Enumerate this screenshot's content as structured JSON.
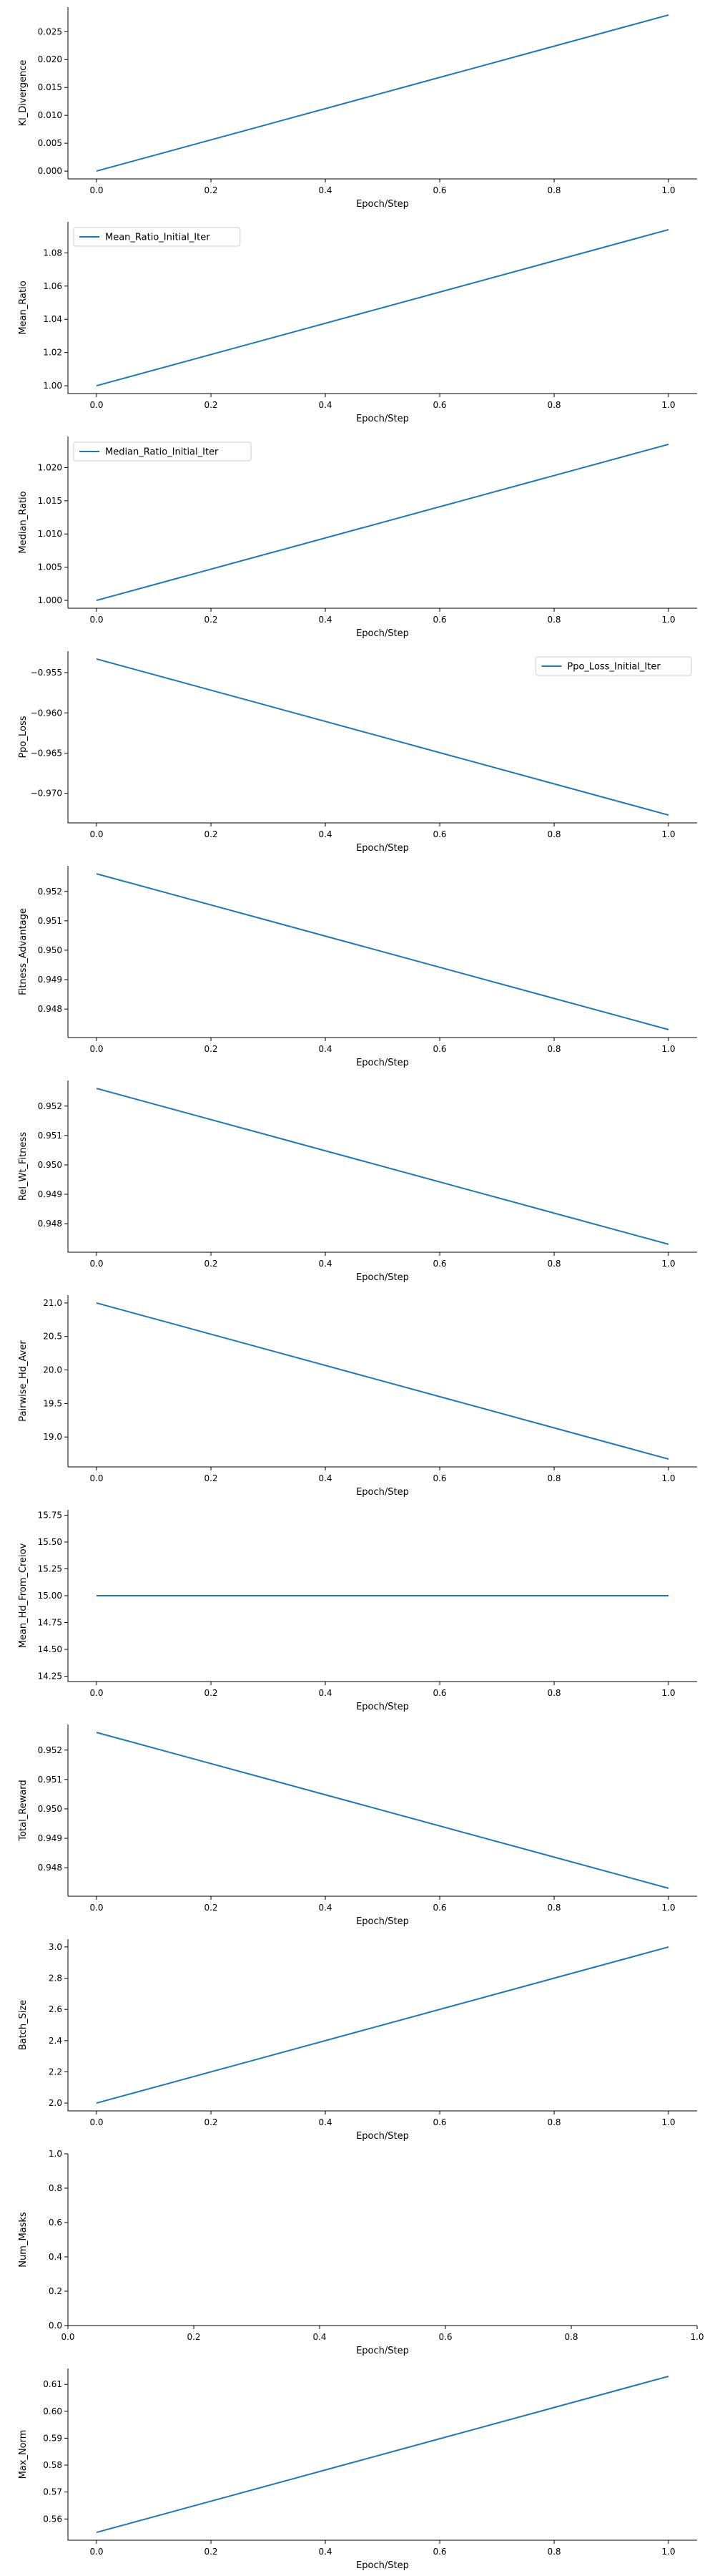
{
  "colors": {
    "line": "#1f77b4",
    "axis": "#000000",
    "legend_border": "#cccccc"
  },
  "chart_data": [
    {
      "type": "line",
      "xlabel": "Epoch/Step",
      "ylabel": "Kl_Divergence",
      "x": [
        0.0,
        1.0
      ],
      "y": [
        0.0,
        0.028
      ],
      "xlim": [
        -0.05,
        1.05
      ],
      "ylim": [
        -0.0014,
        0.0294
      ],
      "xticks": [
        0.0,
        0.2,
        0.4,
        0.6,
        0.8,
        1.0
      ],
      "xtick_labels": [
        "0.0",
        "0.2",
        "0.4",
        "0.6",
        "0.8",
        "1.0"
      ],
      "yticks": [
        0.0,
        0.005,
        0.01,
        0.015,
        0.02,
        0.025
      ],
      "ytick_labels": [
        "0.000",
        "0.005",
        "0.010",
        "0.015",
        "0.020",
        "0.025"
      ],
      "legend": null
    },
    {
      "type": "line",
      "xlabel": "Epoch/Step",
      "ylabel": "Mean_Ratio",
      "x": [
        0.0,
        1.0
      ],
      "y": [
        1.0,
        1.094
      ],
      "xlim": [
        -0.05,
        1.05
      ],
      "ylim": [
        0.9953,
        1.0987
      ],
      "xticks": [
        0.0,
        0.2,
        0.4,
        0.6,
        0.8,
        1.0
      ],
      "xtick_labels": [
        "0.0",
        "0.2",
        "0.4",
        "0.6",
        "0.8",
        "1.0"
      ],
      "yticks": [
        1.0,
        1.02,
        1.04,
        1.06,
        1.08
      ],
      "ytick_labels": [
        "1.00",
        "1.02",
        "1.04",
        "1.06",
        "1.08"
      ],
      "legend": {
        "label": "Mean_Ratio_Initial_Iter",
        "loc": "upper left"
      }
    },
    {
      "type": "line",
      "xlabel": "Epoch/Step",
      "ylabel": "Median_Ratio",
      "x": [
        0.0,
        1.0
      ],
      "y": [
        1.0,
        1.0235
      ],
      "xlim": [
        -0.05,
        1.05
      ],
      "ylim": [
        0.99882,
        1.02468
      ],
      "xticks": [
        0.0,
        0.2,
        0.4,
        0.6,
        0.8,
        1.0
      ],
      "xtick_labels": [
        "0.0",
        "0.2",
        "0.4",
        "0.6",
        "0.8",
        "1.0"
      ],
      "yticks": [
        1.0,
        1.005,
        1.01,
        1.015,
        1.02
      ],
      "ytick_labels": [
        "1.000",
        "1.005",
        "1.010",
        "1.015",
        "1.020"
      ],
      "legend": {
        "label": "Median_Ratio_Initial_Iter",
        "loc": "upper left"
      }
    },
    {
      "type": "line",
      "xlabel": "Epoch/Step",
      "ylabel": "Ppo_Loss",
      "x": [
        0.0,
        1.0
      ],
      "y": [
        -0.9533,
        -0.9727
      ],
      "xlim": [
        -0.05,
        1.05
      ],
      "ylim": [
        -0.97367,
        -0.95233
      ],
      "xticks": [
        0.0,
        0.2,
        0.4,
        0.6,
        0.8,
        1.0
      ],
      "xtick_labels": [
        "0.0",
        "0.2",
        "0.4",
        "0.6",
        "0.8",
        "1.0"
      ],
      "yticks": [
        -0.955,
        -0.96,
        -0.965,
        -0.97
      ],
      "ytick_labels": [
        "−0.955",
        "−0.960",
        "−0.965",
        "−0.970"
      ],
      "legend": {
        "label": "Ppo_Loss_Initial_Iter",
        "loc": "upper right"
      }
    },
    {
      "type": "line",
      "xlabel": "Epoch/Step",
      "ylabel": "Fitness_Advantage",
      "x": [
        0.0,
        1.0
      ],
      "y": [
        0.9526,
        0.9473
      ],
      "xlim": [
        -0.05,
        1.05
      ],
      "ylim": [
        0.94703,
        0.95287
      ],
      "xticks": [
        0.0,
        0.2,
        0.4,
        0.6,
        0.8,
        1.0
      ],
      "xtick_labels": [
        "0.0",
        "0.2",
        "0.4",
        "0.6",
        "0.8",
        "1.0"
      ],
      "yticks": [
        0.948,
        0.949,
        0.95,
        0.951,
        0.952
      ],
      "ytick_labels": [
        "0.948",
        "0.949",
        "0.950",
        "0.951",
        "0.952"
      ],
      "legend": null
    },
    {
      "type": "line",
      "xlabel": "Epoch/Step",
      "ylabel": "Rel_Wt_Fitness",
      "x": [
        0.0,
        1.0
      ],
      "y": [
        0.9526,
        0.9473
      ],
      "xlim": [
        -0.05,
        1.05
      ],
      "ylim": [
        0.94703,
        0.95287
      ],
      "xticks": [
        0.0,
        0.2,
        0.4,
        0.6,
        0.8,
        1.0
      ],
      "xtick_labels": [
        "0.0",
        "0.2",
        "0.4",
        "0.6",
        "0.8",
        "1.0"
      ],
      "yticks": [
        0.948,
        0.949,
        0.95,
        0.951,
        0.952
      ],
      "ytick_labels": [
        "0.948",
        "0.949",
        "0.950",
        "0.951",
        "0.952"
      ],
      "legend": null
    },
    {
      "type": "line",
      "xlabel": "Epoch/Step",
      "ylabel": "Pairwise_Hd_Aver",
      "x": [
        0.0,
        1.0
      ],
      "y": [
        21.0,
        18.67
      ],
      "xlim": [
        -0.05,
        1.05
      ],
      "ylim": [
        18.5535,
        21.1165
      ],
      "xticks": [
        0.0,
        0.2,
        0.4,
        0.6,
        0.8,
        1.0
      ],
      "xtick_labels": [
        "0.0",
        "0.2",
        "0.4",
        "0.6",
        "0.8",
        "1.0"
      ],
      "yticks": [
        19.0,
        19.5,
        20.0,
        20.5,
        21.0
      ],
      "ytick_labels": [
        "19.0",
        "19.5",
        "20.0",
        "20.5",
        "21.0"
      ],
      "legend": null
    },
    {
      "type": "line",
      "xlabel": "Epoch/Step",
      "ylabel": "Mean_Hd_From_Creiov",
      "x": [
        0.0,
        1.0
      ],
      "y": [
        15.0,
        15.0
      ],
      "xlim": [
        -0.05,
        1.05
      ],
      "ylim": [
        14.2,
        15.8
      ],
      "xticks": [
        0.0,
        0.2,
        0.4,
        0.6,
        0.8,
        1.0
      ],
      "xtick_labels": [
        "0.0",
        "0.2",
        "0.4",
        "0.6",
        "0.8",
        "1.0"
      ],
      "yticks": [
        14.25,
        14.5,
        14.75,
        15.0,
        15.25,
        15.5,
        15.75
      ],
      "ytick_labels": [
        "14.25",
        "14.50",
        "14.75",
        "15.00",
        "15.25",
        "15.50",
        "15.75"
      ],
      "legend": null
    },
    {
      "type": "line",
      "xlabel": "Epoch/Step",
      "ylabel": "Total_Reward",
      "x": [
        0.0,
        1.0
      ],
      "y": [
        0.9526,
        0.9473
      ],
      "xlim": [
        -0.05,
        1.05
      ],
      "ylim": [
        0.94703,
        0.95287
      ],
      "xticks": [
        0.0,
        0.2,
        0.4,
        0.6,
        0.8,
        1.0
      ],
      "xtick_labels": [
        "0.0",
        "0.2",
        "0.4",
        "0.6",
        "0.8",
        "1.0"
      ],
      "yticks": [
        0.948,
        0.949,
        0.95,
        0.951,
        0.952
      ],
      "ytick_labels": [
        "0.948",
        "0.949",
        "0.950",
        "0.951",
        "0.952"
      ],
      "legend": null
    },
    {
      "type": "line",
      "xlabel": "Epoch/Step",
      "ylabel": "Batch_Size",
      "x": [
        0.0,
        1.0
      ],
      "y": [
        2.0,
        3.0
      ],
      "xlim": [
        -0.05,
        1.05
      ],
      "ylim": [
        1.95,
        3.05
      ],
      "xticks": [
        0.0,
        0.2,
        0.4,
        0.6,
        0.8,
        1.0
      ],
      "xtick_labels": [
        "0.0",
        "0.2",
        "0.4",
        "0.6",
        "0.8",
        "1.0"
      ],
      "yticks": [
        2.0,
        2.2,
        2.4,
        2.6,
        2.8,
        3.0
      ],
      "ytick_labels": [
        "2.0",
        "2.2",
        "2.4",
        "2.6",
        "2.8",
        "3.0"
      ],
      "legend": null
    },
    {
      "type": "line",
      "xlabel": "Epoch/Step",
      "ylabel": "Num_Masks",
      "x": [],
      "y": [],
      "xlim": [
        0.0,
        1.0
      ],
      "ylim": [
        0.0,
        1.0
      ],
      "xticks": [
        0.0,
        0.2,
        0.4,
        0.6,
        0.8,
        1.0
      ],
      "xtick_labels": [
        "0.0",
        "0.2",
        "0.4",
        "0.6",
        "0.8",
        "1.0"
      ],
      "yticks": [
        0.0,
        0.2,
        0.4,
        0.6,
        0.8,
        1.0
      ],
      "ytick_labels": [
        "0.0",
        "0.2",
        "0.4",
        "0.6",
        "0.8",
        "1.0"
      ],
      "legend": null
    },
    {
      "type": "line",
      "xlabel": "Epoch/Step",
      "ylabel": "Max_Norm",
      "x": [
        0.0,
        1.0
      ],
      "y": [
        0.555,
        0.613
      ],
      "xlim": [
        -0.05,
        1.05
      ],
      "ylim": [
        0.5521,
        0.6159
      ],
      "xticks": [
        0.0,
        0.2,
        0.4,
        0.6,
        0.8,
        1.0
      ],
      "xtick_labels": [
        "0.0",
        "0.2",
        "0.4",
        "0.6",
        "0.8",
        "1.0"
      ],
      "yticks": [
        0.56,
        0.57,
        0.58,
        0.59,
        0.6,
        0.61
      ],
      "ytick_labels": [
        "0.56",
        "0.57",
        "0.58",
        "0.59",
        "0.60",
        "0.61"
      ],
      "legend": null
    }
  ]
}
